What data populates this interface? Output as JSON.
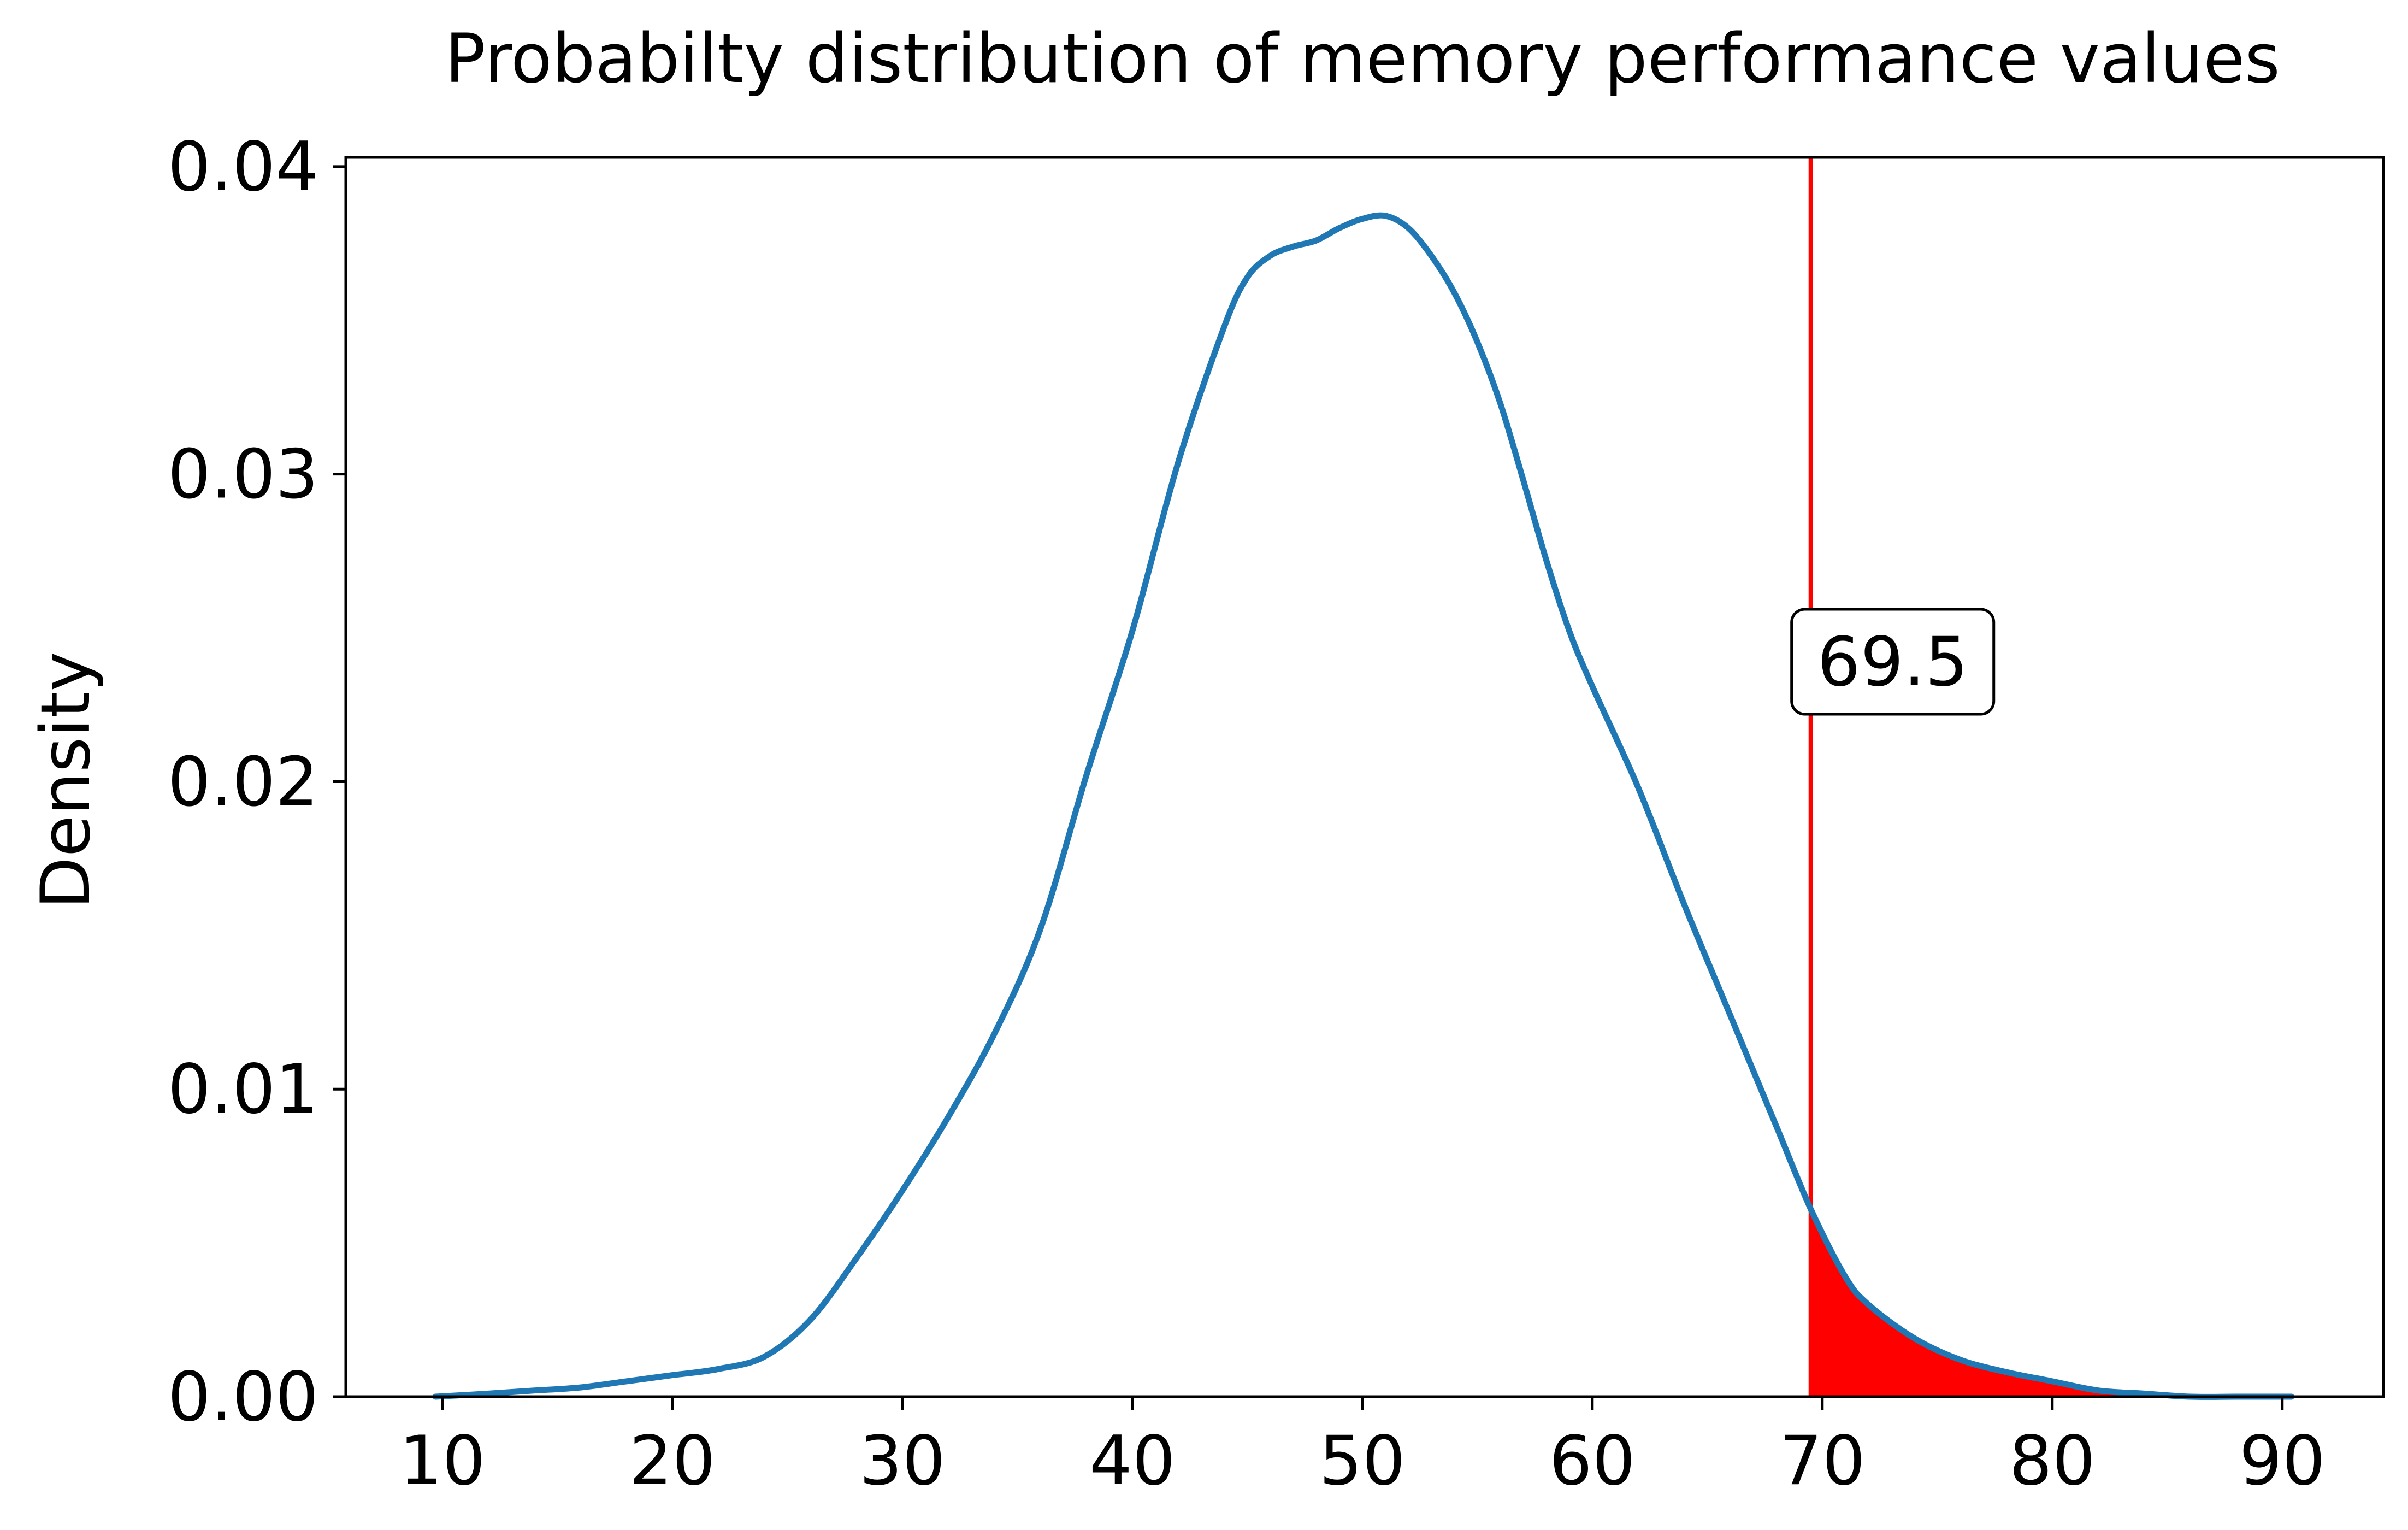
{
  "chart_data": {
    "type": "area",
    "title": "Probabilty distribution of memory performance values",
    "xlabel": "",
    "ylabel": "Density",
    "xlim": [
      5.8,
      94.4
    ],
    "ylim": [
      0,
      0.0403
    ],
    "xticks": [
      10,
      20,
      30,
      40,
      50,
      60,
      70,
      80,
      90
    ],
    "xtick_labels": [
      "10",
      "20",
      "30",
      "40",
      "50",
      "60",
      "70",
      "80",
      "90"
    ],
    "yticks": [
      0.0,
      0.01,
      0.02,
      0.03,
      0.04
    ],
    "ytick_labels": [
      "0.00",
      "0.01",
      "0.02",
      "0.03",
      "0.04"
    ],
    "grid": false,
    "legend": "none",
    "series": [
      {
        "color": "#1f77b4",
        "x": [
          9.7,
          12,
          14,
          16,
          18,
          20,
          22,
          24,
          26,
          28,
          30,
          32,
          34,
          36,
          38,
          40,
          42,
          44,
          45,
          46,
          47,
          48,
          49,
          50,
          51,
          52,
          53,
          54,
          55,
          56,
          57,
          58,
          59,
          60,
          62,
          64,
          66,
          68,
          69.5,
          71,
          72,
          74,
          76,
          78,
          80,
          82,
          84,
          86,
          88,
          90.4
        ],
        "y": [
          0.0,
          0.0001,
          0.0002,
          0.0003,
          0.0005,
          0.0007,
          0.0009,
          0.0013,
          0.0025,
          0.0045,
          0.0067,
          0.0091,
          0.0118,
          0.0152,
          0.0202,
          0.0249,
          0.0304,
          0.0348,
          0.0364,
          0.0371,
          0.0374,
          0.0376,
          0.038,
          0.0383,
          0.0384,
          0.038,
          0.0371,
          0.0359,
          0.0343,
          0.0323,
          0.0298,
          0.0272,
          0.0249,
          0.0231,
          0.0198,
          0.016,
          0.0124,
          0.0088,
          0.0061,
          0.0039,
          0.003,
          0.0019,
          0.0012,
          0.0008,
          0.0005,
          0.0002,
          0.0001,
          0.0,
          0.0,
          0.0
        ]
      }
    ],
    "threshold": {
      "x": 69.5,
      "label": "69.5",
      "color": "#ff0000"
    },
    "shaded_region": {
      "from": 69.5,
      "to": 90.4,
      "color": "#ff0000"
    }
  }
}
